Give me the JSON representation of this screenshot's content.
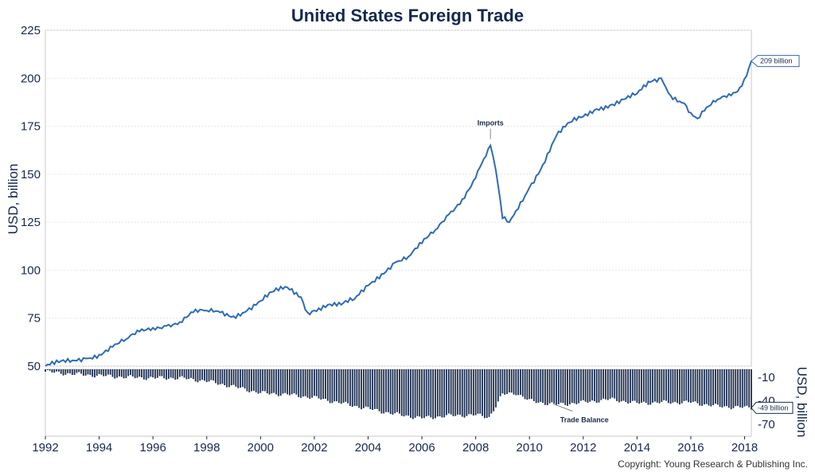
{
  "chart_data": [
    {
      "type": "line",
      "title": "United States Foreign Trade",
      "ylabel": "USD, billion",
      "ylim": [
        50,
        225
      ],
      "yticks": [
        50,
        75,
        100,
        125,
        150,
        175,
        200,
        225
      ],
      "xlim": [
        1992.0,
        2018.25
      ],
      "xticks": [
        1992,
        1994,
        1996,
        1998,
        2000,
        2002,
        2004,
        2006,
        2008,
        2010,
        2012,
        2014,
        2016,
        2018
      ],
      "grid": true,
      "color": "#2e6bb5",
      "series": [
        {
          "name": "Imports",
          "x": [
            1992.0,
            1992.5,
            1993.0,
            1993.5,
            1994.0,
            1994.5,
            1995.0,
            1995.5,
            1996.0,
            1996.5,
            1997.0,
            1997.5,
            1998.0,
            1998.5,
            1999.0,
            1999.5,
            2000.0,
            2000.5,
            2001.0,
            2001.5,
            2001.75,
            2002.0,
            2002.5,
            2003.0,
            2003.5,
            2004.0,
            2004.5,
            2005.0,
            2005.5,
            2006.0,
            2006.5,
            2007.0,
            2007.5,
            2008.0,
            2008.3,
            2008.55,
            2008.75,
            2009.0,
            2009.25,
            2009.5,
            2010.0,
            2010.5,
            2011.0,
            2011.5,
            2012.0,
            2012.5,
            2013.0,
            2013.5,
            2014.0,
            2014.5,
            2014.9,
            2015.25,
            2015.75,
            2016.0,
            2016.25,
            2016.5,
            2017.0,
            2017.5,
            2017.9,
            2018.25
          ],
          "values": [
            50,
            52,
            53,
            54,
            56,
            60,
            64,
            68,
            70,
            71,
            73,
            78,
            79,
            78,
            76,
            79,
            84,
            89,
            91,
            86,
            78,
            79,
            82,
            82,
            85,
            92,
            98,
            104,
            107,
            114,
            121,
            129,
            137,
            148,
            158,
            165,
            152,
            127,
            125,
            131,
            143,
            155,
            170,
            177,
            180,
            184,
            186,
            189,
            192,
            198,
            200,
            191,
            187,
            182,
            179,
            183,
            189,
            191,
            196,
            209
          ]
        }
      ],
      "annotations": [
        {
          "text": "Imports",
          "x": 2008.55,
          "y": 165
        },
        {
          "text": "209 billion",
          "x": 2018.25,
          "y": 209
        }
      ]
    },
    {
      "type": "bar",
      "ylim": [
        -85,
        0
      ],
      "yticks": [
        -10,
        -40,
        -70
      ],
      "ylabel": "USD, billion",
      "color": "#1b2d4f",
      "series": [
        {
          "name": "Trade Balance",
          "x": [
            1992.0,
            1993.0,
            1994.0,
            1995.0,
            1996.0,
            1997.0,
            1998.0,
            1999.0,
            2000.0,
            2001.0,
            2002.0,
            2003.0,
            2004.0,
            2005.0,
            2006.0,
            2007.0,
            2008.0,
            2008.5,
            2009.0,
            2009.5,
            2010.0,
            2011.0,
            2012.0,
            2013.0,
            2014.0,
            2015.0,
            2016.0,
            2017.0,
            2018.25
          ],
          "values": [
            -3,
            -6,
            -8,
            -10,
            -11,
            -11,
            -15,
            -22,
            -30,
            -32,
            -36,
            -43,
            -50,
            -57,
            -62,
            -59,
            -58,
            -61,
            -32,
            -30,
            -40,
            -45,
            -42,
            -38,
            -43,
            -42,
            -42,
            -47,
            -49
          ]
        }
      ],
      "annotations": [
        {
          "text": "Trade Balance",
          "x": 2011.6,
          "y": -42
        },
        {
          "text": "-49 billion",
          "x": 2018.25,
          "y": -49
        }
      ]
    }
  ],
  "footer": {
    "copyright": "Copyright: Young Research & Publishing Inc."
  }
}
